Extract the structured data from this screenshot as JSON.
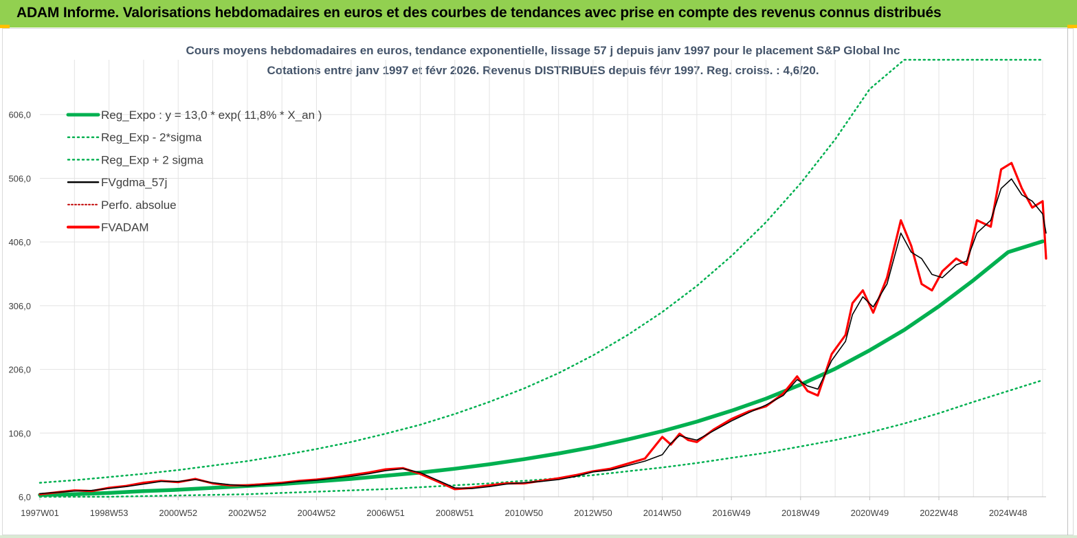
{
  "header": {
    "title": "ADAM Informe. Valorisations hebdomadaires en euros et des courbes de tendances avec prise en compte des revenus connus distribués"
  },
  "colors": {
    "header_band": "#92d050",
    "accent_corner": "#ffc000",
    "reg_expo": "#00b050",
    "fvgdma": "#000000",
    "fvadam": "#ff0000",
    "perfo": "#c00000"
  },
  "chart_data": {
    "type": "line",
    "title": "Cours moyens hebdomadaires en euros, tendance exponentielle, lissage 57 j depuis janv 1997 pour le placement S&P Global Inc",
    "subtitle": "Cotations entre janv 1997 et févr 2026. Revenus DISTRIBUES depuis févr 1997. Reg. croiss. : 4,6/20.",
    "xlabel": "",
    "ylabel": "",
    "x_range": [
      1997.0,
      2026.1
    ],
    "ylim": [
      6,
      692
    ],
    "yticks": [
      6,
      106,
      206,
      306,
      406,
      506,
      606
    ],
    "ytick_labels": [
      "6,0",
      "106,0",
      "206,0",
      "306,0",
      "406,0",
      "506,0",
      "606,0"
    ],
    "xtick_labels": [
      "1997W01",
      "1998W53",
      "2000W52",
      "2002W52",
      "2004W52",
      "2006W51",
      "2008W51",
      "2010W50",
      "2012W50",
      "2014W50",
      "2016W49",
      "2018W49",
      "2020W49",
      "2022W48",
      "2024W48"
    ],
    "xtick_years": [
      1997.0,
      1999.0,
      2001.0,
      2003.0,
      2005.0,
      2007.0,
      2009.0,
      2011.0,
      2013.0,
      2015.0,
      2017.0,
      2019.0,
      2021.0,
      2023.0,
      2025.0
    ],
    "grid": true,
    "legend": [
      {
        "name": "Reg_Expo : y = 13,0 * exp( 11,8% *  X_an )",
        "style": "solid-thick",
        "color": "#00b050"
      },
      {
        "name": "Reg_Exp - 2*sigma",
        "style": "dotted",
        "color": "#00b050"
      },
      {
        "name": "Reg_Exp + 2 sigma",
        "style": "dotted",
        "color": "#00b050"
      },
      {
        "name": "FVgdma_57j",
        "style": "solid",
        "color": "#000000"
      },
      {
        "name": "Perfo. absolue",
        "style": "dotted",
        "color": "#c00000"
      },
      {
        "name": "FVADAM",
        "style": "solid-thick",
        "color": "#ff0000"
      }
    ],
    "legend_position": "top-left",
    "regression": {
      "a": 13.0,
      "rate": 0.118
    },
    "series": [
      {
        "name": "Reg_Expo",
        "x": [
          1997,
          1998,
          1999,
          2000,
          2001,
          2002,
          2003,
          2004,
          2005,
          2006,
          2007,
          2008,
          2009,
          2010,
          2011,
          2012,
          2013,
          2014,
          2015,
          2016,
          2017,
          2018,
          2019,
          2020,
          2021,
          2022,
          2023,
          2024,
          2025,
          2026
        ],
        "values": [
          9,
          10,
          12,
          15,
          17,
          20,
          23,
          26,
          30,
          34,
          39,
          44,
          50,
          57,
          65,
          74,
          84,
          96,
          109,
          124,
          141,
          160,
          182,
          207,
          236,
          268,
          305,
          346,
          390,
          407
        ]
      },
      {
        "name": "Reg_Exp - 2*sigma",
        "x": [
          1997,
          1998,
          1999,
          2000,
          2001,
          2002,
          2003,
          2004,
          2005,
          2006,
          2007,
          2008,
          2009,
          2010,
          2011,
          2012,
          2013,
          2014,
          2015,
          2016,
          2017,
          2018,
          2019,
          2020,
          2021,
          2022,
          2023,
          2024,
          2025,
          2026
        ],
        "values": [
          6,
          6,
          6,
          7,
          8,
          9,
          10,
          12,
          14,
          16,
          18,
          21,
          24,
          27,
          31,
          35,
          40,
          46,
          52,
          59,
          67,
          75,
          85,
          95,
          107,
          121,
          137,
          155,
          172,
          189
        ]
      },
      {
        "name": "Reg_Exp + 2 sigma",
        "x": [
          1997,
          1998,
          1999,
          2000,
          2001,
          2002,
          2003,
          2004,
          2005,
          2006,
          2007,
          2008,
          2009,
          2010,
          2011,
          2012,
          2013,
          2014,
          2015,
          2016,
          2017,
          2018,
          2019,
          2020,
          2021,
          2022,
          2023,
          2024,
          2025,
          2026
        ],
        "values": [
          28,
          32,
          37,
          42,
          48,
          55,
          62,
          71,
          81,
          92,
          105,
          119,
          136,
          155,
          176,
          200,
          228,
          260,
          296,
          337,
          384,
          437,
          498,
          567,
          646,
          692,
          692,
          692,
          692,
          692
        ]
      },
      {
        "name": "FVgdma_57j",
        "x": [
          1997.0,
          1997.5,
          1998.0,
          1998.5,
          1999.0,
          1999.5,
          2000.0,
          2000.5,
          2001.0,
          2001.5,
          2002.0,
          2002.5,
          2003.0,
          2003.5,
          2004.0,
          2004.5,
          2005.0,
          2005.5,
          2006.0,
          2006.5,
          2007.0,
          2007.5,
          2008.0,
          2008.5,
          2009.0,
          2009.5,
          2010.0,
          2010.5,
          2011.0,
          2011.5,
          2012.0,
          2012.5,
          2013.0,
          2013.5,
          2014.0,
          2014.5,
          2015.0,
          2015.25,
          2015.5,
          2015.75,
          2016.0,
          2016.5,
          2017.0,
          2017.5,
          2018.0,
          2018.5,
          2018.9,
          2019.2,
          2019.5,
          2019.9,
          2020.3,
          2020.5,
          2020.8,
          2021.1,
          2021.5,
          2021.9,
          2022.2,
          2022.5,
          2022.8,
          2023.1,
          2023.5,
          2023.8,
          2024.1,
          2024.5,
          2024.8,
          2025.1,
          2025.4,
          2025.7,
          2026.0,
          2026.1
        ],
        "values": [
          11,
          13,
          15,
          16,
          19,
          22,
          26,
          30,
          30,
          33,
          28,
          25,
          23,
          25,
          27,
          30,
          32,
          35,
          38,
          42,
          47,
          50,
          44,
          32,
          20,
          19,
          22,
          26,
          28,
          30,
          33,
          38,
          45,
          48,
          55,
          62,
          72,
          90,
          102,
          98,
          95,
          110,
          125,
          138,
          150,
          165,
          190,
          180,
          175,
          220,
          250,
          292,
          320,
          304,
          340,
          420,
          390,
          380,
          355,
          350,
          370,
          376,
          420,
          440,
          490,
          505,
          480,
          470,
          450,
          420
        ]
      },
      {
        "name": "FVADAM",
        "x": [
          1997.0,
          1997.5,
          1998.0,
          1998.5,
          1999.0,
          1999.5,
          2000.0,
          2000.5,
          2001.0,
          2001.5,
          2002.0,
          2002.5,
          2003.0,
          2003.5,
          2004.0,
          2004.5,
          2005.0,
          2005.5,
          2006.0,
          2006.5,
          2007.0,
          2007.5,
          2008.0,
          2008.5,
          2009.0,
          2009.5,
          2010.0,
          2010.5,
          2011.0,
          2011.5,
          2012.0,
          2012.5,
          2013.0,
          2013.5,
          2014.0,
          2014.5,
          2015.0,
          2015.25,
          2015.5,
          2015.75,
          2016.0,
          2016.5,
          2017.0,
          2017.5,
          2018.0,
          2018.5,
          2018.9,
          2019.2,
          2019.5,
          2019.9,
          2020.3,
          2020.5,
          2020.8,
          2021.1,
          2021.5,
          2021.9,
          2022.2,
          2022.5,
          2022.8,
          2023.1,
          2023.5,
          2023.8,
          2024.1,
          2024.5,
          2024.8,
          2025.1,
          2025.4,
          2025.7,
          2026.0,
          2026.1
        ],
        "values": [
          10,
          13,
          16,
          15,
          20,
          23,
          28,
          31,
          29,
          34,
          27,
          24,
          24,
          26,
          28,
          31,
          33,
          36,
          40,
          44,
          49,
          51,
          42,
          30,
          18,
          20,
          24,
          27,
          27,
          31,
          35,
          40,
          46,
          50,
          58,
          66,
          100,
          88,
          105,
          95,
          92,
          112,
          128,
          140,
          148,
          168,
          195,
          172,
          165,
          230,
          260,
          310,
          330,
          295,
          350,
          440,
          400,
          340,
          330,
          360,
          380,
          370,
          440,
          430,
          520,
          530,
          490,
          460,
          470,
          380
        ]
      }
    ]
  }
}
